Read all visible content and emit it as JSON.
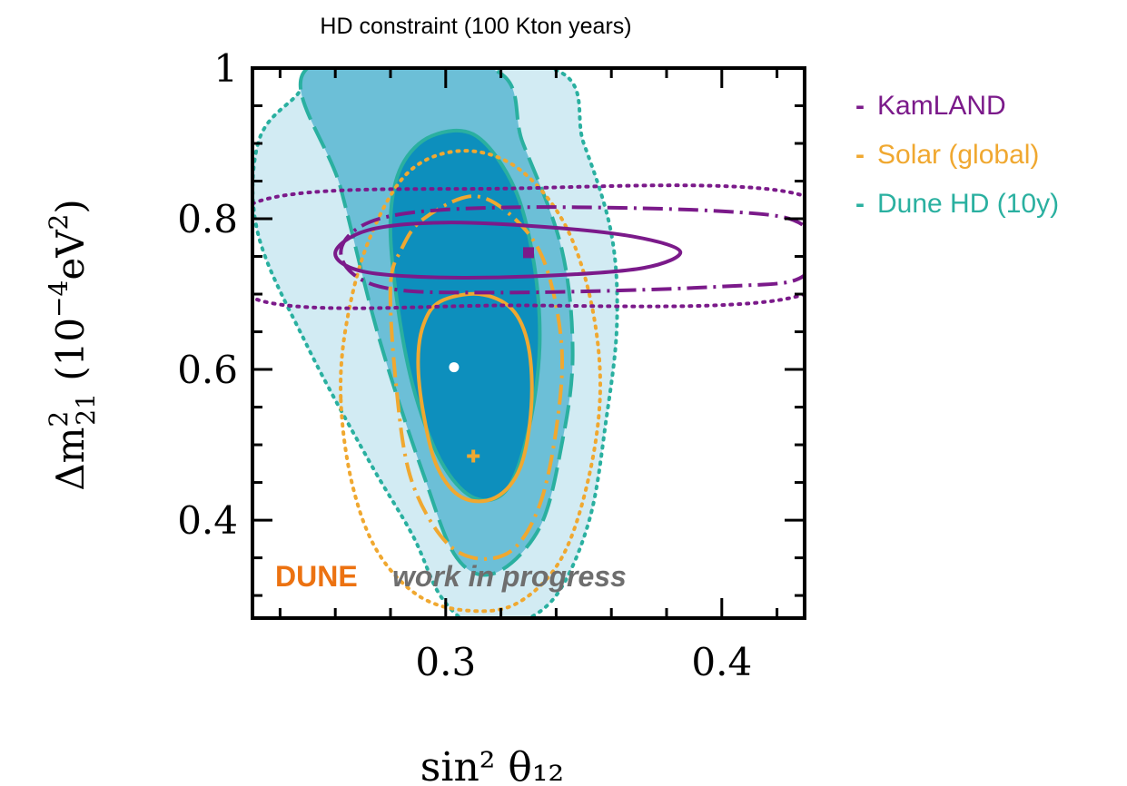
{
  "chart_data": {
    "type": "contour",
    "title": "HD constraint (100 Kton years)",
    "xlabel": "sin² θ₁₂",
    "ylabel_parts": {
      "main": "Δm",
      "sup": "2",
      "sub": "21",
      "unit_open": " (10",
      "unit_sup": "−4",
      "unit_mid": "eV",
      "unit_sup2": "2",
      "unit_close": ")"
    },
    "xlim": [
      0.23,
      0.43
    ],
    "ylim": [
      0.27,
      1.0
    ],
    "xticks": [
      0.3,
      0.4
    ],
    "xtick_labels": [
      "0.3",
      "0.4"
    ],
    "yticks": [
      0.4,
      0.6,
      0.8,
      1.0
    ],
    "ytick_labels": [
      "0.4",
      "0.6",
      "0.8",
      "1"
    ],
    "colors": {
      "kamland": "#7b1a8a",
      "solar": "#f0a830",
      "dune": "#2ab0a0",
      "fill_outer": "#d2ebf3",
      "fill_mid": "#6cbfd7",
      "fill_inner": "#0d8fbd",
      "dune_label": "#ec7211",
      "wip_label": "#6e6e6e"
    },
    "legend": {
      "position": "right",
      "entries": [
        {
          "marker": "-",
          "label": "KamLAND",
          "color": "#7b1a8a"
        },
        {
          "marker": "-",
          "label": "Solar (global)",
          "color": "#f0a830"
        },
        {
          "marker": "-",
          "label": "Dune HD (10y)",
          "color": "#2ab0a0"
        }
      ]
    },
    "annotation": {
      "brand": "DUNE",
      "text": "work in progress"
    },
    "best_fits": [
      {
        "series": "KamLAND",
        "x": 0.33,
        "y": 0.755,
        "marker": "square"
      },
      {
        "series": "Solar (global)",
        "x": 0.31,
        "y": 0.485,
        "marker": "plus"
      },
      {
        "series": "Dune HD (10y)",
        "x": 0.303,
        "y": 0.603,
        "marker": "dot"
      }
    ],
    "series": [
      {
        "name": "Dune HD (10y)",
        "level": "outer",
        "style": "dotted-fill",
        "points": [
          [
            0.232,
            0.9
          ],
          [
            0.232,
            0.78
          ],
          [
            0.25,
            0.63
          ],
          [
            0.272,
            0.48
          ],
          [
            0.288,
            0.38
          ],
          [
            0.298,
            0.3
          ],
          [
            0.31,
            0.26
          ],
          [
            0.324,
            0.26
          ],
          [
            0.34,
            0.3
          ],
          [
            0.352,
            0.4
          ],
          [
            0.358,
            0.53
          ],
          [
            0.362,
            0.66
          ],
          [
            0.36,
            0.78
          ],
          [
            0.35,
            0.9
          ],
          [
            0.338,
            1.0
          ],
          [
            0.262,
            1.0
          ],
          [
            0.245,
            0.96
          ]
        ]
      },
      {
        "name": "Dune HD (10y)",
        "level": "mid",
        "style": "dashed-fill",
        "points": [
          [
            0.25,
            1.0
          ],
          [
            0.262,
            0.84
          ],
          [
            0.276,
            0.64
          ],
          [
            0.292,
            0.46
          ],
          [
            0.304,
            0.35
          ],
          [
            0.318,
            0.33
          ],
          [
            0.334,
            0.39
          ],
          [
            0.342,
            0.5
          ],
          [
            0.346,
            0.62
          ],
          [
            0.342,
            0.76
          ],
          [
            0.328,
            0.9
          ],
          [
            0.316,
            1.0
          ]
        ]
      },
      {
        "name": "Dune HD (10y)",
        "level": "inner",
        "style": "solid-fill",
        "points": [
          [
            0.28,
            0.8
          ],
          [
            0.282,
            0.7
          ],
          [
            0.288,
            0.58
          ],
          [
            0.298,
            0.48
          ],
          [
            0.31,
            0.43
          ],
          [
            0.322,
            0.44
          ],
          [
            0.33,
            0.52
          ],
          [
            0.334,
            0.63
          ],
          [
            0.332,
            0.74
          ],
          [
            0.325,
            0.84
          ],
          [
            0.311,
            0.91
          ],
          [
            0.295,
            0.91
          ],
          [
            0.284,
            0.87
          ]
        ]
      },
      {
        "name": "Solar (global)",
        "level": "1sigma",
        "style": "solid",
        "points": [
          [
            0.29,
            0.61
          ],
          [
            0.292,
            0.54
          ],
          [
            0.297,
            0.47
          ],
          [
            0.306,
            0.43
          ],
          [
            0.318,
            0.43
          ],
          [
            0.327,
            0.47
          ],
          [
            0.331,
            0.55
          ],
          [
            0.33,
            0.63
          ],
          [
            0.324,
            0.68
          ],
          [
            0.312,
            0.7
          ],
          [
            0.298,
            0.69
          ],
          [
            0.292,
            0.66
          ]
        ]
      },
      {
        "name": "Solar (global)",
        "level": "2sigma",
        "style": "dash-dot",
        "points": [
          [
            0.28,
            0.71
          ],
          [
            0.282,
            0.58
          ],
          [
            0.287,
            0.46
          ],
          [
            0.298,
            0.38
          ],
          [
            0.31,
            0.35
          ],
          [
            0.324,
            0.36
          ],
          [
            0.334,
            0.42
          ],
          [
            0.34,
            0.52
          ],
          [
            0.342,
            0.63
          ],
          [
            0.336,
            0.74
          ],
          [
            0.325,
            0.8
          ],
          [
            0.31,
            0.83
          ],
          [
            0.292,
            0.8
          ],
          [
            0.284,
            0.76
          ]
        ]
      },
      {
        "name": "Solar (global)",
        "level": "3sigma",
        "style": "dotted",
        "points": [
          [
            0.262,
            0.56
          ],
          [
            0.266,
            0.45
          ],
          [
            0.275,
            0.36
          ],
          [
            0.29,
            0.3
          ],
          [
            0.308,
            0.28
          ],
          [
            0.326,
            0.29
          ],
          [
            0.342,
            0.35
          ],
          [
            0.352,
            0.46
          ],
          [
            0.356,
            0.58
          ],
          [
            0.352,
            0.7
          ],
          [
            0.342,
            0.8
          ],
          [
            0.325,
            0.87
          ],
          [
            0.305,
            0.89
          ],
          [
            0.286,
            0.86
          ],
          [
            0.272,
            0.77
          ],
          [
            0.264,
            0.66
          ]
        ]
      },
      {
        "name": "KamLAND",
        "level": "1sigma",
        "style": "solid",
        "points": [
          [
            0.26,
            0.755
          ],
          [
            0.272,
            0.785
          ],
          [
            0.3,
            0.795
          ],
          [
            0.34,
            0.788
          ],
          [
            0.37,
            0.775
          ],
          [
            0.385,
            0.756
          ],
          [
            0.372,
            0.735
          ],
          [
            0.34,
            0.725
          ],
          [
            0.3,
            0.722
          ],
          [
            0.27,
            0.73
          ]
        ]
      },
      {
        "name": "KamLAND",
        "level": "2sigma",
        "style": "dash-dot",
        "points": [
          [
            0.262,
            0.755
          ],
          [
            0.276,
            0.8
          ],
          [
            0.32,
            0.815
          ],
          [
            0.4,
            0.81
          ],
          [
            0.43,
            0.79
          ],
          [
            0.43,
            0.725
          ],
          [
            0.4,
            0.71
          ],
          [
            0.32,
            0.702
          ],
          [
            0.276,
            0.71
          ]
        ]
      },
      {
        "name": "KamLAND",
        "level": "3sigma",
        "style": "dotted",
        "points": [
          [
            0.23,
            0.82
          ],
          [
            0.32,
            0.84
          ],
          [
            0.43,
            0.83
          ],
          [
            0.43,
            0.7
          ],
          [
            0.32,
            0.685
          ],
          [
            0.23,
            0.695
          ]
        ]
      }
    ]
  }
}
